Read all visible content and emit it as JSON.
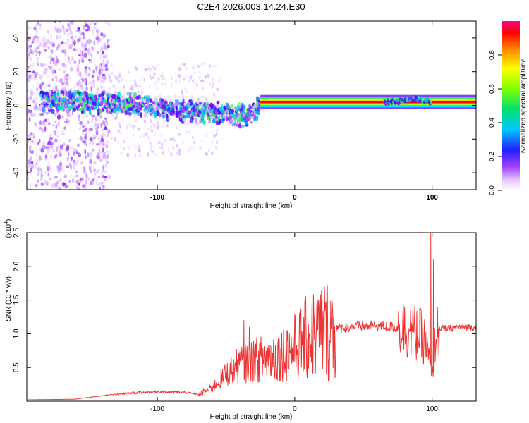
{
  "title": "C2E4.2026.003.14.24.E30",
  "chart_data": [
    {
      "type": "heatmap",
      "name": "spectrogram",
      "xlabel": "Height of straight line (km)",
      "ylabel": "Frequency (Hz)",
      "xlim": [
        -195,
        132
      ],
      "ylim": [
        -50,
        50
      ],
      "xticks": [
        -100,
        0,
        100
      ],
      "yticks": [
        -40,
        -20,
        0,
        20,
        40
      ],
      "colorbar": {
        "label": "Normalized spectral amplitude",
        "range": [
          0,
          1
        ],
        "ticks": [
          0.0,
          0.2,
          0.4,
          0.6,
          0.8
        ]
      },
      "trace": {
        "x": [
          -190,
          -170,
          -150,
          -130,
          -110,
          -95,
          -80,
          -65,
          -50,
          -40,
          -32,
          -25,
          -15,
          -5,
          0,
          10,
          20,
          40,
          60,
          70,
          80,
          88,
          95,
          100,
          110,
          132
        ],
        "freq": [
          3,
          3,
          2,
          1,
          0,
          -2,
          -3,
          -4,
          -5,
          -6,
          -5,
          1,
          2,
          1,
          2,
          2,
          2,
          2,
          2,
          2,
          3,
          4,
          3,
          2,
          2,
          2
        ]
      }
    },
    {
      "type": "line",
      "name": "snr",
      "xlabel": "Height of straight line (km)",
      "ylabel": "SNR (10 * v/v)",
      "scale_label": "(x10",
      "scale_exponent": "4",
      "scale_close": ")",
      "xlim": [
        -195,
        132
      ],
      "ylim": [
        0,
        2.5
      ],
      "xticks": [
        -100,
        0,
        100
      ],
      "yticks": [
        0.5,
        1.0,
        1.5,
        2.0,
        2.5
      ],
      "color": "#ee3333",
      "envelope": {
        "x": [
          -195,
          -160,
          -140,
          -120,
          -100,
          -80,
          -70,
          -60,
          -50,
          -40,
          -30,
          -20,
          -10,
          0,
          10,
          20,
          30,
          40,
          60,
          70,
          80,
          90,
          95,
          98,
          100,
          102,
          105,
          110,
          120,
          132
        ],
        "y": [
          0.02,
          0.03,
          0.08,
          0.12,
          0.14,
          0.13,
          0.1,
          0.2,
          0.4,
          0.55,
          0.6,
          0.65,
          0.7,
          0.8,
          0.95,
          1.05,
          1.08,
          1.1,
          1.12,
          1.1,
          1.08,
          1.0,
          0.9,
          0.6,
          0.3,
          0.9,
          1.08,
          1.08,
          1.1,
          1.1
        ]
      },
      "spikes": [
        {
          "x": -37,
          "y": 1.2
        },
        {
          "x": -33,
          "y": 1.1
        },
        {
          "x": -30,
          "y": 0.9
        },
        {
          "x": -5,
          "y": 1.05
        },
        {
          "x": 10,
          "y": 1.15
        },
        {
          "x": 80,
          "y": 1.4
        },
        {
          "x": 91,
          "y": 1.38
        },
        {
          "x": 99,
          "y": 2.5
        },
        {
          "x": 101,
          "y": 2.1
        }
      ]
    }
  ]
}
